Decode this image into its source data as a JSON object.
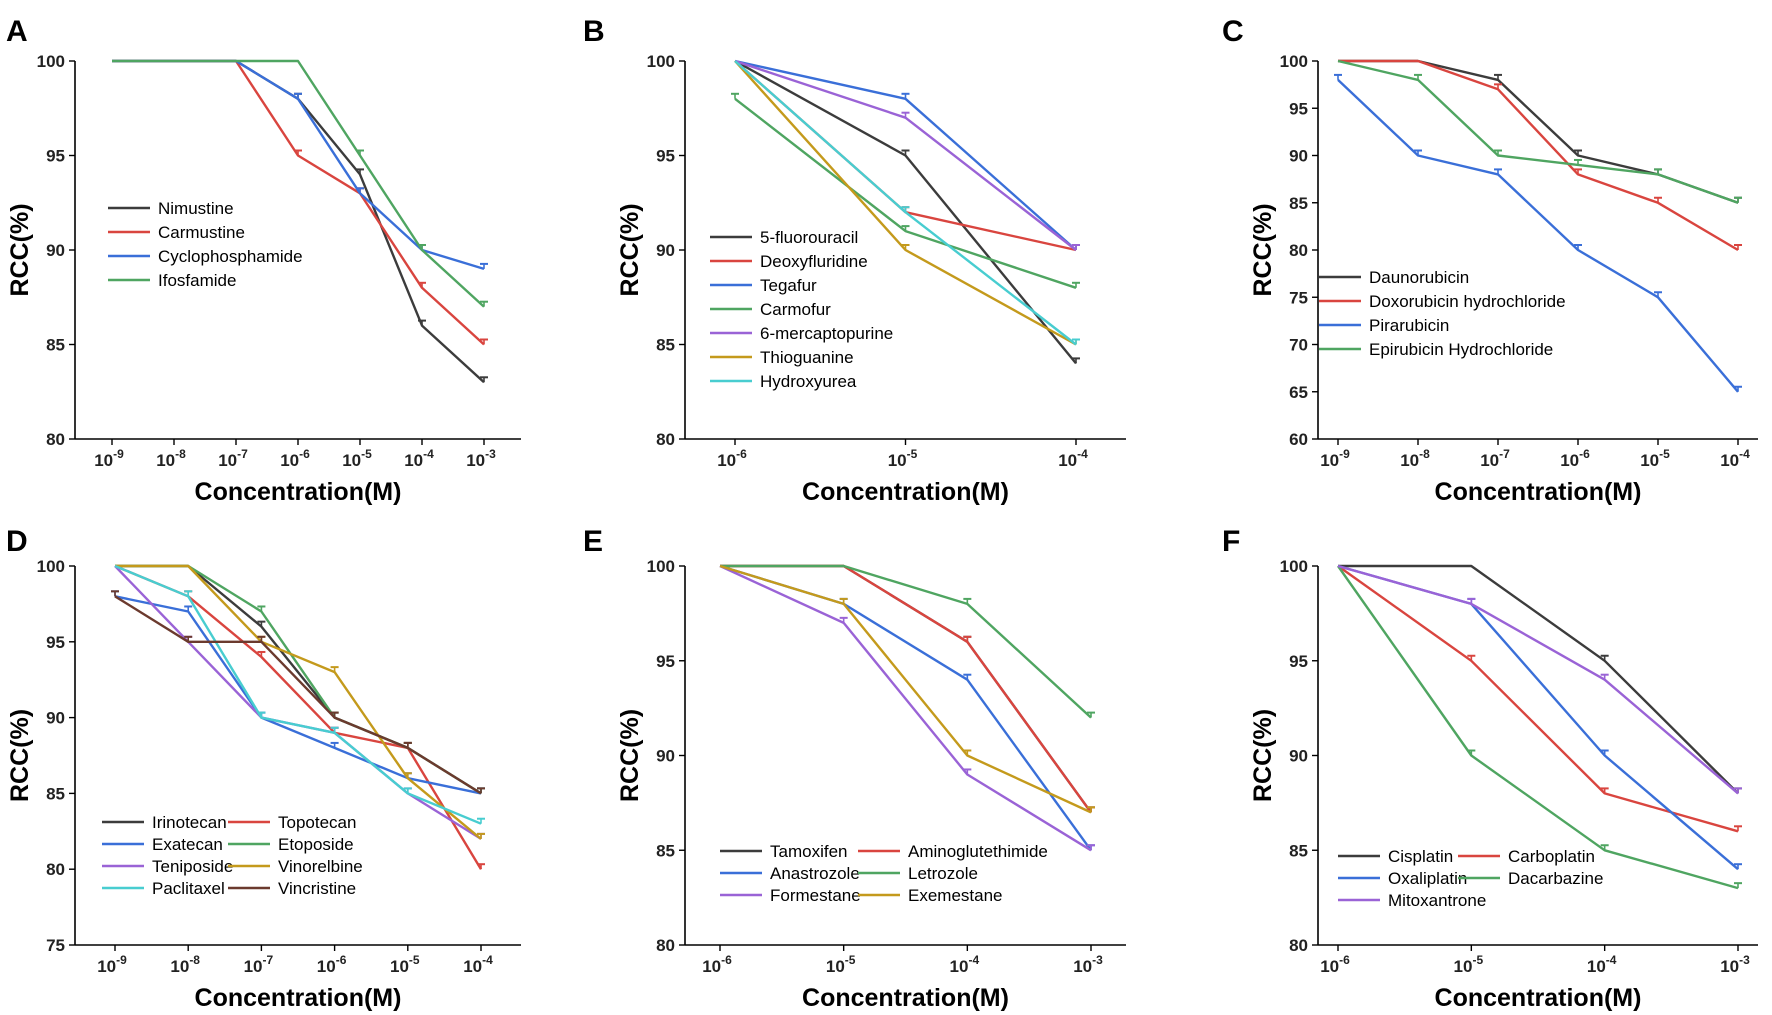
{
  "chart_data": [
    {
      "type": "line",
      "panel": "A",
      "xlabel": "Concentration(M)",
      "ylabel": "RCC(%)",
      "xscale": "log",
      "xticks": [
        {
          "base": "10",
          "exp": "-9"
        },
        {
          "base": "10",
          "exp": "-8"
        },
        {
          "base": "10",
          "exp": "-7"
        },
        {
          "base": "10",
          "exp": "-6"
        },
        {
          "base": "10",
          "exp": "-5"
        },
        {
          "base": "10",
          "exp": "-4"
        },
        {
          "base": "10",
          "exp": "-3"
        }
      ],
      "yticks": [
        "80",
        "85",
        "90",
        "95",
        "100"
      ],
      "ylim": [
        80,
        100
      ],
      "x": [
        -9,
        -8,
        -7,
        -6,
        -5,
        -4,
        -3
      ],
      "legend_layout": "single-column",
      "series": [
        {
          "name": "Nimustine",
          "color": "#3c3c3c",
          "values": [
            100,
            100,
            100,
            98,
            94,
            86,
            83
          ]
        },
        {
          "name": "Carmustine",
          "color": "#d9453f",
          "values": [
            100,
            100,
            100,
            95,
            93,
            88,
            85
          ]
        },
        {
          "name": "Cyclophosphamide",
          "color": "#3a6fd8",
          "values": [
            100,
            100,
            100,
            98,
            93,
            90,
            89
          ]
        },
        {
          "name": "Ifosfamide",
          "color": "#4fa561",
          "values": [
            100,
            100,
            100,
            100,
            95,
            90,
            87
          ]
        }
      ]
    },
    {
      "type": "line",
      "panel": "B",
      "xlabel": "Concentration(M)",
      "ylabel": "RCC(%)",
      "xscale": "log",
      "xticks": [
        {
          "base": "10",
          "exp": "-6"
        },
        {
          "base": "10",
          "exp": "-5"
        },
        {
          "base": "10",
          "exp": "-4"
        }
      ],
      "yticks": [
        "80",
        "85",
        "90",
        "95",
        "100"
      ],
      "ylim": [
        80,
        100
      ],
      "x": [
        -6,
        -5,
        -4
      ],
      "legend_layout": "single-column",
      "series": [
        {
          "name": "5-fluorouracil",
          "color": "#3c3c3c",
          "values": [
            100,
            95,
            84
          ]
        },
        {
          "name": "Deoxyfluridine",
          "color": "#d9453f",
          "values": [
            100,
            92,
            90
          ]
        },
        {
          "name": "Tegafur",
          "color": "#3a6fd8",
          "values": [
            100,
            98,
            90
          ]
        },
        {
          "name": "Carmofur",
          "color": "#4fa561",
          "values": [
            98,
            91,
            88
          ]
        },
        {
          "name": "6-mercaptopurine",
          "color": "#9a63d6",
          "values": [
            100,
            97,
            90
          ]
        },
        {
          "name": "Thioguanine",
          "color": "#c49a1c",
          "values": [
            100,
            90,
            85
          ]
        },
        {
          "name": "Hydroxyurea",
          "color": "#48cdd0",
          "values": [
            100,
            92,
            85
          ]
        }
      ]
    },
    {
      "type": "line",
      "panel": "C",
      "xlabel": "Concentration(M)",
      "ylabel": "RCC(%)",
      "xscale": "log",
      "xticks": [
        {
          "base": "10",
          "exp": "-9"
        },
        {
          "base": "10",
          "exp": "-8"
        },
        {
          "base": "10",
          "exp": "-7"
        },
        {
          "base": "10",
          "exp": "-6"
        },
        {
          "base": "10",
          "exp": "-5"
        },
        {
          "base": "10",
          "exp": "-4"
        }
      ],
      "yticks": [
        "60",
        "65",
        "70",
        "75",
        "80",
        "85",
        "90",
        "95",
        "100"
      ],
      "ylim": [
        60,
        100
      ],
      "x": [
        -9,
        -8,
        -7,
        -6,
        -5,
        -4
      ],
      "legend_layout": "single-column",
      "series": [
        {
          "name": "Daunorubicin",
          "color": "#3c3c3c",
          "values": [
            100,
            100,
            98,
            90,
            88,
            85
          ]
        },
        {
          "name": "Doxorubicin hydrochloride",
          "color": "#d9453f",
          "values": [
            100,
            100,
            97,
            88,
            85,
            80
          ]
        },
        {
          "name": "Pirarubicin",
          "color": "#3a6fd8",
          "values": [
            98,
            90,
            88,
            80,
            75,
            65
          ]
        },
        {
          "name": "Epirubicin Hydrochloride",
          "color": "#4fa561",
          "values": [
            100,
            98,
            90,
            89,
            88,
            85
          ]
        }
      ]
    },
    {
      "type": "line",
      "panel": "D",
      "xlabel": "Concentration(M)",
      "ylabel": "RCC(%)",
      "xscale": "log",
      "xticks": [
        {
          "base": "10",
          "exp": "-9"
        },
        {
          "base": "10",
          "exp": "-8"
        },
        {
          "base": "10",
          "exp": "-7"
        },
        {
          "base": "10",
          "exp": "-6"
        },
        {
          "base": "10",
          "exp": "-5"
        },
        {
          "base": "10",
          "exp": "-4"
        }
      ],
      "yticks": [
        "75",
        "80",
        "85",
        "90",
        "95",
        "100"
      ],
      "ylim": [
        75,
        100
      ],
      "x": [
        -9,
        -8,
        -7,
        -6,
        -5,
        -4
      ],
      "legend_layout": "two-column",
      "series": [
        {
          "name": "Irinotecan",
          "color": "#3c3c3c",
          "values": [
            100,
            100,
            96,
            90,
            88,
            85
          ]
        },
        {
          "name": "Topotecan",
          "color": "#d9453f",
          "values": [
            100,
            98,
            94,
            89,
            88,
            80
          ]
        },
        {
          "name": "Exatecan",
          "color": "#3a6fd8",
          "values": [
            98,
            97,
            90,
            88,
            86,
            85
          ]
        },
        {
          "name": "Etoposide",
          "color": "#4fa561",
          "values": [
            100,
            100,
            97,
            90,
            88,
            85
          ]
        },
        {
          "name": "Teniposide",
          "color": "#9a63d6",
          "values": [
            100,
            95,
            90,
            89,
            85,
            82
          ]
        },
        {
          "name": "Vinorelbine",
          "color": "#c49a1c",
          "values": [
            100,
            100,
            95,
            93,
            86,
            82
          ]
        },
        {
          "name": "Paclitaxel",
          "color": "#48cdd0",
          "values": [
            100,
            98,
            90,
            89,
            85,
            83
          ]
        },
        {
          "name": "Vincristine",
          "color": "#6b3a2e",
          "values": [
            98,
            95,
            95,
            90,
            88,
            85
          ]
        }
      ]
    },
    {
      "type": "line",
      "panel": "E",
      "xlabel": "Concentration(M)",
      "ylabel": "RCC(%)",
      "xscale": "log",
      "xticks": [
        {
          "base": "10",
          "exp": "-6"
        },
        {
          "base": "10",
          "exp": "-5"
        },
        {
          "base": "10",
          "exp": "-4"
        },
        {
          "base": "10",
          "exp": "-3"
        }
      ],
      "yticks": [
        "80",
        "85",
        "90",
        "95",
        "100"
      ],
      "ylim": [
        80,
        100
      ],
      "x": [
        -6,
        -5,
        -4,
        -3
      ],
      "legend_layout": "two-column",
      "series": [
        {
          "name": "Tamoxifen",
          "color": "#3c3c3c",
          "values": [
            100,
            100,
            96,
            87
          ]
        },
        {
          "name": "Aminoglutethimide",
          "color": "#d9453f",
          "values": [
            100,
            100,
            96,
            87
          ]
        },
        {
          "name": "Anastrozole",
          "color": "#3a6fd8",
          "values": [
            100,
            98,
            94,
            85
          ]
        },
        {
          "name": "Letrozole",
          "color": "#4fa561",
          "values": [
            100,
            100,
            98,
            92
          ]
        },
        {
          "name": "Formestane",
          "color": "#9a63d6",
          "values": [
            100,
            97,
            89,
            85
          ]
        },
        {
          "name": "Exemestane",
          "color": "#c49a1c",
          "values": [
            100,
            98,
            90,
            87
          ]
        }
      ]
    },
    {
      "type": "line",
      "panel": "F",
      "xlabel": "Concentration(M)",
      "ylabel": "RCC(%)",
      "xscale": "log",
      "xticks": [
        {
          "base": "10",
          "exp": "-6"
        },
        {
          "base": "10",
          "exp": "-5"
        },
        {
          "base": "10",
          "exp": "-4"
        },
        {
          "base": "10",
          "exp": "-3"
        }
      ],
      "yticks": [
        "80",
        "85",
        "90",
        "95",
        "100"
      ],
      "ylim": [
        80,
        100
      ],
      "x": [
        -6,
        -5,
        -4,
        -3
      ],
      "legend_layout": "two-column",
      "series": [
        {
          "name": "Cisplatin",
          "color": "#3c3c3c",
          "values": [
            100,
            100,
            95,
            88
          ]
        },
        {
          "name": "Carboplatin",
          "color": "#d9453f",
          "values": [
            100,
            95,
            88,
            86
          ]
        },
        {
          "name": "Oxaliplatin",
          "color": "#3a6fd8",
          "values": [
            100,
            98,
            90,
            84
          ]
        },
        {
          "name": "Dacarbazine",
          "color": "#4fa561",
          "values": [
            100,
            90,
            85,
            83
          ]
        },
        {
          "name": "Mitoxantrone",
          "color": "#9a63d6",
          "values": [
            100,
            98,
            94,
            88
          ]
        }
      ]
    }
  ]
}
